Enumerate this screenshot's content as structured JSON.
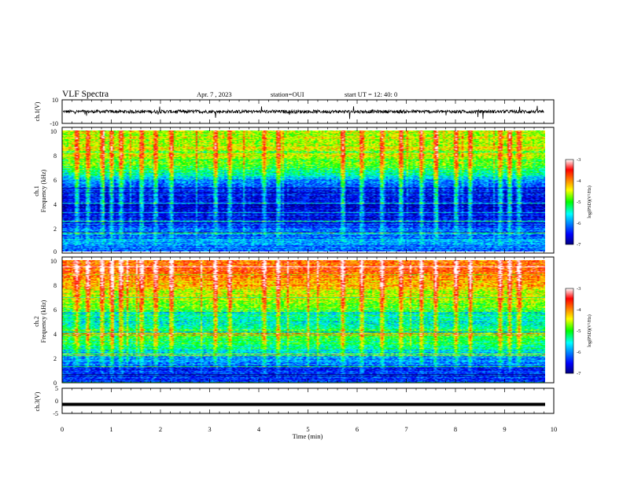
{
  "header": {
    "title": "VLF Spectra",
    "date": "Apr. 7 , 2023",
    "station": "station=OUI",
    "start_ut": "start UT = 12: 40: 0"
  },
  "chart_data": [
    {
      "type": "line",
      "name": "ch1-waveform",
      "ylabel": "ch.1(V)",
      "ylim": [
        -10,
        10
      ],
      "ytick_labels": [
        "10",
        "-10"
      ],
      "xlim": [
        0,
        10
      ],
      "baseline": 0,
      "amplitude_approx": 2
    },
    {
      "type": "heatmap",
      "name": "ch1-spectrogram",
      "ylabel_line1": "ch.1",
      "ylabel_line2": "Frequency (kHz)",
      "ylim": [
        0,
        10
      ],
      "ytick_labels": [
        "0",
        "2",
        "4",
        "6",
        "8",
        "10"
      ],
      "xlim": [
        0,
        9.8
      ],
      "colorbar": {
        "label": "log(PSD)(V²/Hz)",
        "range": [
          -7,
          -3
        ],
        "tick_labels": [
          "-3",
          "-4",
          "-5",
          "-6",
          "-7"
        ]
      },
      "profile_khz": [
        0,
        1,
        2,
        3,
        4,
        5,
        6,
        7,
        8,
        9,
        10
      ],
      "profile_logpsd": [
        -6.2,
        -6.0,
        -6.3,
        -6.6,
        -6.7,
        -6.5,
        -5.8,
        -5.0,
        -4.6,
        -4.5,
        -4.5
      ],
      "bursts_min": [
        0.3,
        0.5,
        0.8,
        1.0,
        1.2,
        1.6,
        1.9,
        2.2,
        3.1,
        3.4,
        4.1,
        4.4,
        5.7,
        6.1,
        6.5,
        6.9,
        7.3,
        7.6,
        8.0,
        8.3,
        8.9,
        9.1,
        9.3
      ]
    },
    {
      "type": "heatmap",
      "name": "ch2-spectrogram",
      "ylabel_line1": "ch.2",
      "ylabel_line2": "Frequency (kHz)",
      "ylim": [
        0,
        10
      ],
      "ytick_labels": [
        "0",
        "2",
        "4",
        "6",
        "8",
        "10"
      ],
      "xlim": [
        0,
        9.8
      ],
      "colorbar": {
        "label": "log(PSD)(V²/Hz)",
        "range": [
          -7,
          -3
        ],
        "tick_labels": [
          "-3",
          "-4",
          "-5",
          "-6",
          "-7"
        ]
      },
      "profile_khz": [
        0,
        1,
        2,
        3,
        4,
        5,
        6,
        7,
        8,
        9,
        10
      ],
      "profile_logpsd": [
        -6.3,
        -6.4,
        -5.9,
        -5.3,
        -4.9,
        -5.6,
        -4.9,
        -4.6,
        -4.2,
        -3.8,
        -3.9
      ],
      "bursts_min": [
        0.3,
        0.5,
        0.8,
        1.0,
        1.2,
        1.6,
        1.9,
        2.2,
        3.1,
        3.4,
        4.1,
        4.4,
        5.7,
        6.1,
        6.5,
        6.9,
        7.3,
        7.6,
        8.0,
        8.3,
        8.9,
        9.1,
        9.3
      ]
    },
    {
      "type": "line",
      "name": "ch3-waveform",
      "ylabel": "ch.3(V)",
      "ylim": [
        -5,
        5
      ],
      "ytick_labels": [
        "5",
        "0",
        "-5"
      ],
      "xlim": [
        0,
        10
      ],
      "constant_value": -1.4
    }
  ],
  "x_axis": {
    "label": "Time (min)",
    "tick_labels": [
      "0",
      "1",
      "2",
      "3",
      "4",
      "5",
      "6",
      "7",
      "8",
      "9",
      "10"
    ]
  }
}
